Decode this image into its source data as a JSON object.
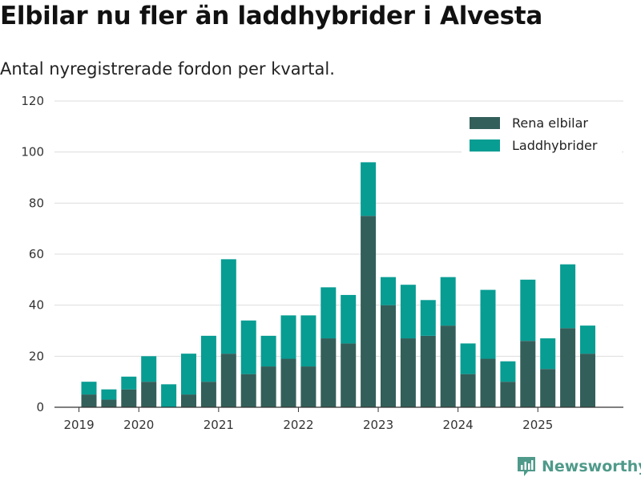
{
  "title": "Elbilar nu fler än laddhybrider i Alvesta",
  "subtitle": "Antal nyregistrerade fordon per kvartal.",
  "brand": {
    "name": "Newsworthy",
    "logo_icon": "newsworthy-logo-icon"
  },
  "colors": {
    "electric": "#335f5a",
    "hybrid": "#079d93",
    "grid": "#dddddd",
    "axis": "#333333",
    "brand": "#4f9a8a"
  },
  "chart_data": {
    "type": "bar",
    "stacked": true,
    "title": "Elbilar nu fler än laddhybrider i Alvesta",
    "subtitle": "Antal nyregistrerade fordon per kvartal.",
    "xlabel": "",
    "ylabel": "",
    "ylim": [
      0,
      120
    ],
    "y_ticks": [
      0,
      20,
      40,
      60,
      80,
      100,
      120
    ],
    "x_tick_labels": [
      "2019",
      "2020",
      "2021",
      "2022",
      "2023",
      "2024",
      "2025"
    ],
    "x_tick_before_category": [
      0,
      3,
      7,
      11,
      15,
      19,
      23
    ],
    "categories": [
      "2019 Q2",
      "2019 Q3",
      "2019 Q4",
      "2020 Q1",
      "2020 Q2",
      "2020 Q3",
      "2020 Q4",
      "2021 Q1",
      "2021 Q2",
      "2021 Q3",
      "2021 Q4",
      "2022 Q1",
      "2022 Q2",
      "2022 Q3",
      "2022 Q4",
      "2023 Q1",
      "2023 Q2",
      "2023 Q3",
      "2023 Q4",
      "2024 Q1",
      "2024 Q2",
      "2024 Q3",
      "2024 Q4",
      "2025 Q1",
      "2025 Q2",
      "2025 Q3"
    ],
    "legend_position": "top-right",
    "series": [
      {
        "name": "Rena elbilar",
        "color": "#335f5a",
        "values": [
          5,
          3,
          7,
          10,
          0,
          5,
          10,
          21,
          13,
          16,
          19,
          16,
          27,
          25,
          75,
          40,
          27,
          28,
          32,
          13,
          19,
          10,
          26,
          15,
          31,
          21
        ]
      },
      {
        "name": "Laddhybrider",
        "color": "#079d93",
        "values": [
          5,
          4,
          5,
          10,
          9,
          16,
          18,
          37,
          21,
          12,
          17,
          20,
          20,
          19,
          21,
          11,
          21,
          14,
          19,
          12,
          27,
          8,
          24,
          12,
          25,
          11
        ]
      }
    ]
  }
}
